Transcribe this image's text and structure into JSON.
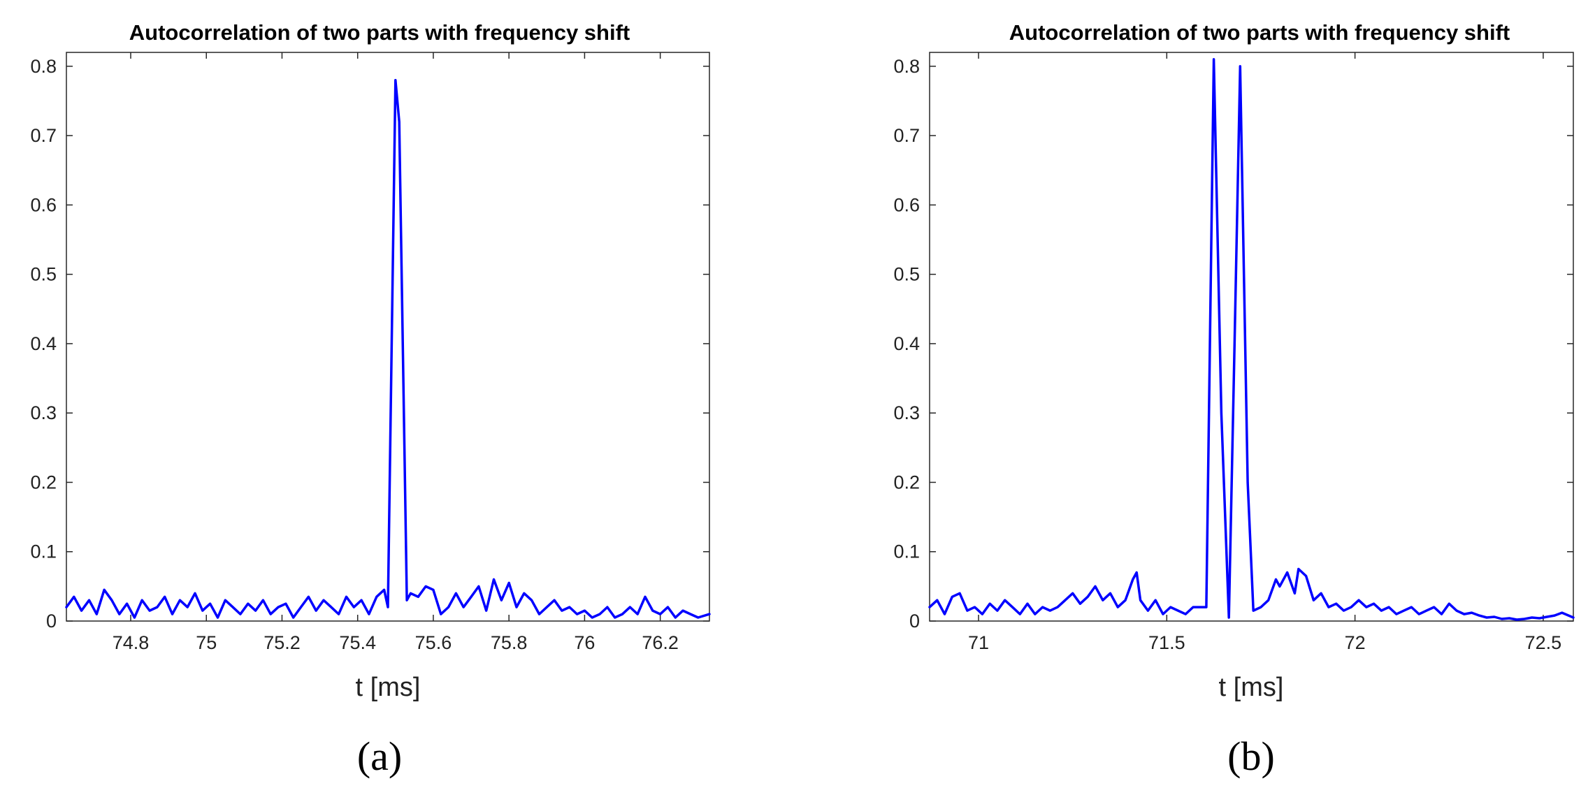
{
  "figure_labels": [
    "(a)",
    "(b)"
  ],
  "chart_data": [
    {
      "type": "line",
      "panel": "(a)",
      "title": "Autocorrelation of two parts with frequency shift",
      "xlabel": "t [ms]",
      "ylabel": "",
      "xlim": [
        74.63,
        76.33
      ],
      "ylim": [
        0,
        0.82
      ],
      "xticks": [
        74.8,
        75,
        75.2,
        75.4,
        75.6,
        75.8,
        76,
        76.2
      ],
      "xtick_labels": [
        "74.8",
        "75",
        "75.2",
        "75.4",
        "75.6",
        "75.8",
        "76",
        "76.2"
      ],
      "yticks": [
        0,
        0.1,
        0.2,
        0.3,
        0.4,
        0.5,
        0.6,
        0.7,
        0.8
      ],
      "ytick_labels": [
        "0",
        "0.1",
        "0.2",
        "0.3",
        "0.4",
        "0.5",
        "0.6",
        "0.7",
        "0.8"
      ],
      "grid": false,
      "color": "#0000ff",
      "series": [
        {
          "x": [
            74.63,
            74.65,
            74.67,
            74.69,
            74.71,
            74.73,
            74.75,
            74.77,
            74.79,
            74.81,
            74.83,
            74.85,
            74.87,
            74.89,
            74.91,
            74.93,
            74.95,
            74.97,
            74.99,
            75.01,
            75.03,
            75.05,
            75.07,
            75.09,
            75.11,
            75.13,
            75.15,
            75.17,
            75.19,
            75.21,
            75.23,
            75.25,
            75.27,
            75.29,
            75.31,
            75.33,
            75.35,
            75.37,
            75.39,
            75.41,
            75.43,
            75.45,
            75.47,
            75.48,
            75.5,
            75.51,
            75.53,
            75.54,
            75.56,
            75.58,
            75.6,
            75.62,
            75.64,
            75.66,
            75.68,
            75.7,
            75.72,
            75.74,
            75.76,
            75.78,
            75.8,
            75.82,
            75.84,
            75.86,
            75.88,
            75.9,
            75.92,
            75.94,
            75.96,
            75.98,
            76.0,
            76.02,
            76.04,
            76.06,
            76.08,
            76.1,
            76.12,
            76.14,
            76.16,
            76.18,
            76.2,
            76.22,
            76.24,
            76.26,
            76.28,
            76.3,
            76.33
          ],
          "y": [
            0.02,
            0.035,
            0.015,
            0.03,
            0.01,
            0.045,
            0.03,
            0.01,
            0.025,
            0.005,
            0.03,
            0.015,
            0.02,
            0.035,
            0.01,
            0.03,
            0.02,
            0.04,
            0.015,
            0.025,
            0.005,
            0.03,
            0.02,
            0.01,
            0.025,
            0.015,
            0.03,
            0.01,
            0.02,
            0.025,
            0.005,
            0.02,
            0.035,
            0.015,
            0.03,
            0.02,
            0.01,
            0.035,
            0.02,
            0.03,
            0.01,
            0.035,
            0.045,
            0.02,
            0.78,
            0.72,
            0.03,
            0.04,
            0.035,
            0.05,
            0.045,
            0.01,
            0.02,
            0.04,
            0.02,
            0.035,
            0.05,
            0.015,
            0.06,
            0.03,
            0.055,
            0.02,
            0.04,
            0.03,
            0.01,
            0.02,
            0.03,
            0.015,
            0.02,
            0.01,
            0.015,
            0.005,
            0.01,
            0.02,
            0.005,
            0.01,
            0.02,
            0.01,
            0.035,
            0.015,
            0.01,
            0.02,
            0.005,
            0.015,
            0.01,
            0.005,
            0.01
          ]
        }
      ]
    },
    {
      "type": "line",
      "panel": "(b)",
      "title": "Autocorrelation of two parts with frequency shift",
      "xlabel": "t [ms]",
      "ylabel": "",
      "xlim": [
        70.87,
        72.58
      ],
      "ylim": [
        0,
        0.82
      ],
      "xticks": [
        71,
        71.5,
        72,
        72.5
      ],
      "xtick_labels": [
        "71",
        "71.5",
        "72",
        "72.5"
      ],
      "yticks": [
        0,
        0.1,
        0.2,
        0.3,
        0.4,
        0.5,
        0.6,
        0.7,
        0.8
      ],
      "ytick_labels": [
        "0",
        "0.1",
        "0.2",
        "0.3",
        "0.4",
        "0.5",
        "0.6",
        "0.7",
        "0.8"
      ],
      "grid": false,
      "color": "#0000ff",
      "series": [
        {
          "x": [
            70.87,
            70.89,
            70.91,
            70.93,
            70.95,
            70.97,
            70.99,
            71.01,
            71.03,
            71.05,
            71.07,
            71.09,
            71.11,
            71.13,
            71.15,
            71.17,
            71.19,
            71.21,
            71.23,
            71.25,
            71.27,
            71.29,
            71.31,
            71.33,
            71.35,
            71.37,
            71.39,
            71.41,
            71.42,
            71.43,
            71.45,
            71.47,
            71.49,
            71.51,
            71.53,
            71.55,
            71.57,
            71.59,
            71.605,
            71.625,
            71.645,
            71.665,
            71.68,
            71.695,
            71.715,
            71.73,
            71.75,
            71.77,
            71.79,
            71.8,
            71.82,
            71.84,
            71.85,
            71.87,
            71.89,
            71.91,
            71.93,
            71.95,
            71.97,
            71.99,
            72.01,
            72.03,
            72.05,
            72.07,
            72.09,
            72.11,
            72.13,
            72.15,
            72.17,
            72.19,
            72.21,
            72.23,
            72.25,
            72.27,
            72.29,
            72.31,
            72.33,
            72.35,
            72.37,
            72.39,
            72.41,
            72.43,
            72.45,
            72.47,
            72.49,
            72.51,
            72.53,
            72.55,
            72.58
          ],
          "y": [
            0.02,
            0.03,
            0.01,
            0.035,
            0.04,
            0.015,
            0.02,
            0.01,
            0.025,
            0.015,
            0.03,
            0.02,
            0.01,
            0.025,
            0.01,
            0.02,
            0.015,
            0.02,
            0.03,
            0.04,
            0.025,
            0.035,
            0.05,
            0.03,
            0.04,
            0.02,
            0.03,
            0.06,
            0.07,
            0.03,
            0.015,
            0.03,
            0.01,
            0.02,
            0.015,
            0.01,
            0.02,
            0.02,
            0.02,
            0.81,
            0.3,
            0.005,
            0.4,
            0.8,
            0.2,
            0.015,
            0.02,
            0.03,
            0.06,
            0.05,
            0.07,
            0.04,
            0.075,
            0.065,
            0.03,
            0.04,
            0.02,
            0.025,
            0.015,
            0.02,
            0.03,
            0.02,
            0.025,
            0.015,
            0.02,
            0.01,
            0.015,
            0.02,
            0.01,
            0.015,
            0.02,
            0.01,
            0.025,
            0.015,
            0.01,
            0.012,
            0.008,
            0.005,
            0.006,
            0.003,
            0.004,
            0.002,
            0.003,
            0.005,
            0.004,
            0.006,
            0.008,
            0.012,
            0.005
          ]
        }
      ]
    }
  ]
}
